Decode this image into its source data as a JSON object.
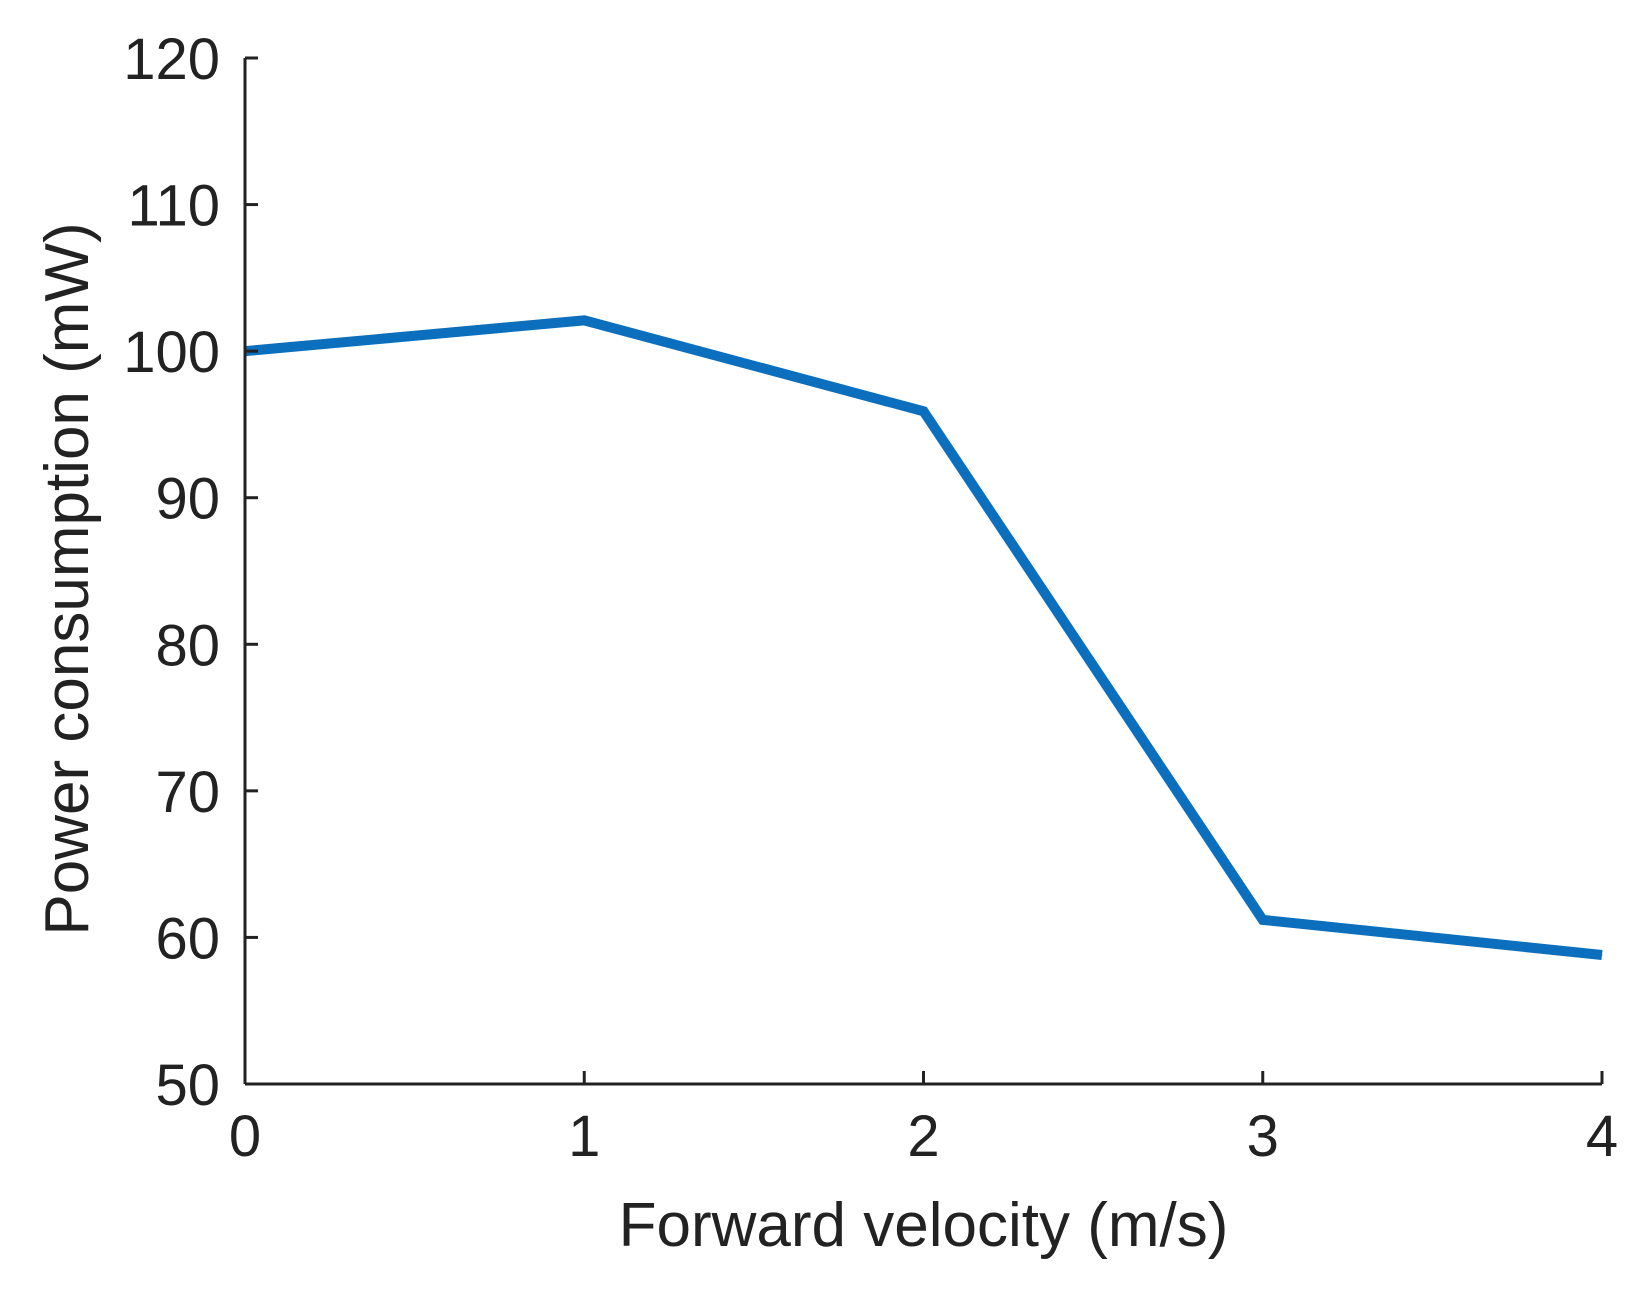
{
  "chart_data": {
    "type": "line",
    "title": "",
    "xlabel": "Forward velocity (m/s)",
    "ylabel": "Power consumption (mW)",
    "xlim": [
      0,
      4
    ],
    "ylim": [
      50,
      120
    ],
    "xticks": [
      0,
      1,
      2,
      3,
      4
    ],
    "yticks": [
      50,
      60,
      70,
      80,
      90,
      100,
      110,
      120
    ],
    "xtick_labels": [
      "0",
      "1",
      "2",
      "3",
      "4"
    ],
    "ytick_labels": [
      "50",
      "60",
      "70",
      "80",
      "90",
      "100",
      "110",
      "120"
    ],
    "grid": false,
    "series": [
      {
        "name": "Power consumption",
        "color": "#0b6fbd",
        "x": [
          0,
          1,
          2,
          3,
          4
        ],
        "y": [
          100,
          102.1,
          95.9,
          61.2,
          58.8
        ]
      }
    ]
  }
}
